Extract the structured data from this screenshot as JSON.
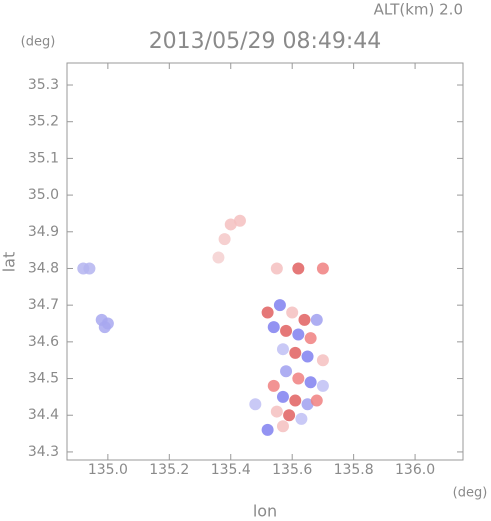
{
  "chart_data": {
    "type": "scatter",
    "altitude_label": "ALT(km) 2.0",
    "title": "2013/05/29 08:49:44",
    "y_unit": "(deg)",
    "x_unit": "(deg)",
    "ylabel": "lat",
    "xlabel": "lon",
    "xlim": [
      134.867,
      136.156
    ],
    "ylim": [
      34.278,
      35.36
    ],
    "xticks": [
      {
        "value": 135.0,
        "label": "135.0"
      },
      135.2,
      135.4,
      135.6,
      135.8,
      {
        "value": 136.0,
        "label": "136.0"
      }
    ],
    "yticks": [
      35.3,
      35.2,
      35.1,
      {
        "value": 35.0,
        "label": "35.0"
      },
      34.9,
      34.8,
      34.7,
      34.6,
      34.5,
      34.4,
      34.3
    ],
    "x": [
      134.92,
      134.94,
      134.98,
      135.0,
      134.99,
      135.4,
      135.43,
      135.38,
      135.36,
      135.55,
      135.62,
      135.7,
      135.52,
      135.56,
      135.6,
      135.64,
      135.68,
      135.54,
      135.58,
      135.62,
      135.66,
      135.57,
      135.61,
      135.65,
      135.7,
      135.58,
      135.62,
      135.66,
      135.54,
      135.7,
      135.57,
      135.61,
      135.65,
      135.55,
      135.59,
      135.63,
      135.52,
      135.57,
      135.48,
      135.68
    ],
    "y": [
      34.8,
      34.8,
      34.66,
      34.65,
      34.64,
      34.92,
      34.93,
      34.88,
      34.83,
      34.8,
      34.8,
      34.8,
      34.68,
      34.7,
      34.68,
      34.66,
      34.66,
      34.64,
      34.63,
      34.62,
      34.61,
      34.58,
      34.57,
      34.56,
      34.55,
      34.52,
      34.5,
      34.49,
      34.48,
      34.48,
      34.45,
      34.44,
      34.43,
      34.41,
      34.4,
      34.39,
      34.36,
      34.37,
      34.43,
      34.44
    ],
    "colors": [
      "#b4b4f0",
      "#b4b4f0",
      "#a8a8f0",
      "#a8a8f0",
      "#a8a8f0",
      "#f5c0c0",
      "#f5c0c0",
      "#f5c8c8",
      "#f5d0d0",
      "#f5c0c0",
      "#e06060",
      "#f08080",
      "#e06060",
      "#8080f0",
      "#f5c0c0",
      "#e06060",
      "#a0a0f0",
      "#8080f0",
      "#e06060",
      "#8080f0",
      "#f08080",
      "#c0c0f5",
      "#e06060",
      "#8080f0",
      "#f5c0c0",
      "#a0a0f0",
      "#f08080",
      "#8080f0",
      "#f08080",
      "#c0c0f5",
      "#8080f0",
      "#e06060",
      "#a0a0f0",
      "#f5c0c0",
      "#e06060",
      "#c0c0f5",
      "#8080f0",
      "#f5c0c0",
      "#c0c0f5",
      "#f08080"
    ]
  }
}
